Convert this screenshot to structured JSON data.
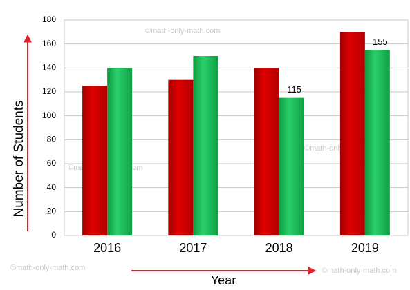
{
  "chart_data": {
    "type": "bar",
    "x_label": "Year",
    "y_label": "Number of Students",
    "categories": [
      "2016",
      "2017",
      "2018",
      "2019"
    ],
    "series": [
      {
        "color": "#d40000",
        "values": [
          125,
          130,
          140,
          170
        ]
      },
      {
        "color": "#1db954",
        "values": [
          140,
          150,
          115,
          155
        ],
        "value_labels": [
          null,
          null,
          "115",
          "155"
        ]
      }
    ],
    "ylim": [
      0,
      180
    ],
    "yticks": [
      0,
      20,
      40,
      60,
      80,
      100,
      120,
      140,
      160,
      180
    ],
    "grid": true,
    "watermarks": [
      "©math-only-math.com",
      "©math-only-math.com",
      "©math-only-math.com",
      "©math-only-math.com",
      "©math-only-math.com"
    ]
  }
}
